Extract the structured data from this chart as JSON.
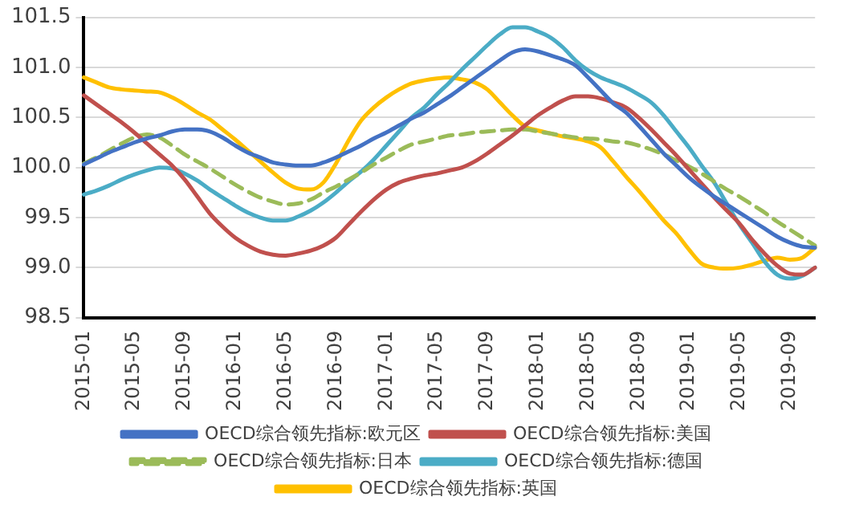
{
  "chart_data": {
    "type": "line",
    "categories": [
      "2015-01",
      null,
      null,
      null,
      "2015-05",
      null,
      null,
      null,
      "2015-09",
      null,
      null,
      null,
      "2016-01",
      null,
      null,
      null,
      "2016-05",
      null,
      null,
      null,
      "2016-09",
      null,
      null,
      null,
      "2017-01",
      null,
      null,
      null,
      "2017-05",
      null,
      null,
      null,
      "2017-09",
      null,
      null,
      null,
      "2018-01",
      null,
      null,
      null,
      "2018-05",
      null,
      null,
      null,
      "2018-09",
      null,
      null,
      null,
      "2019-01",
      null,
      null,
      null,
      "2019-05",
      null,
      null,
      null,
      "2019-09",
      null,
      null
    ],
    "series": [
      {
        "name": "OECD综合领先指标:欧元区",
        "color": "#4472c4",
        "values": [
          100.03,
          100.09,
          100.15,
          100.2,
          100.25,
          100.29,
          100.32,
          100.36,
          100.38,
          100.38,
          100.36,
          100.3,
          100.22,
          100.15,
          100.1,
          100.05,
          100.03,
          100.02,
          100.02,
          100.05,
          100.1,
          100.16,
          100.22,
          100.29,
          100.35,
          100.42,
          100.49,
          100.55,
          100.63,
          100.71,
          100.8,
          100.89,
          100.98,
          101.07,
          101.15,
          101.18,
          101.16,
          101.12,
          101.08,
          101.02,
          100.9,
          100.77,
          100.64,
          100.55,
          100.42,
          100.28,
          100.14,
          100.02,
          99.9,
          99.8,
          99.71,
          99.63,
          99.55,
          99.47,
          99.39,
          99.31,
          99.25,
          99.21,
          99.2
        ]
      },
      {
        "name": "OECD综合领先指标:美国",
        "color": "#c0504d",
        "values": [
          100.72,
          100.63,
          100.54,
          100.45,
          100.35,
          100.24,
          100.13,
          100.02,
          99.88,
          99.71,
          99.54,
          99.41,
          99.3,
          99.22,
          99.16,
          99.13,
          99.12,
          99.14,
          99.17,
          99.22,
          99.3,
          99.43,
          99.56,
          99.68,
          99.78,
          99.85,
          99.89,
          99.92,
          99.94,
          99.97,
          100.0,
          100.06,
          100.14,
          100.23,
          100.32,
          100.42,
          100.52,
          100.6,
          100.67,
          100.71,
          100.71,
          100.69,
          100.65,
          100.6,
          100.5,
          100.38,
          100.25,
          100.12,
          99.98,
          99.84,
          99.7,
          99.57,
          99.44,
          99.28,
          99.14,
          99.02,
          98.94,
          98.93,
          99.0
        ]
      },
      {
        "name": "OECD综合领先指标:日本",
        "color": "#9bbb59",
        "line_style": "dashed",
        "values": [
          100.04,
          100.1,
          100.17,
          100.24,
          100.3,
          100.33,
          100.3,
          100.22,
          100.13,
          100.06,
          99.99,
          99.91,
          99.83,
          99.76,
          99.7,
          99.66,
          99.63,
          99.64,
          99.68,
          99.75,
          99.81,
          99.88,
          99.95,
          100.03,
          100.1,
          100.17,
          100.23,
          100.26,
          100.29,
          100.32,
          100.33,
          100.35,
          100.36,
          100.37,
          100.38,
          100.38,
          100.36,
          100.34,
          100.32,
          100.3,
          100.29,
          100.28,
          100.26,
          100.25,
          100.22,
          100.18,
          100.13,
          100.07,
          100.01,
          99.94,
          99.86,
          99.78,
          99.71,
          99.63,
          99.55,
          99.46,
          99.38,
          99.3,
          99.22
        ]
      },
      {
        "name": "OECD综合领先指标:德国",
        "color": "#4bacc6",
        "values": [
          99.73,
          99.77,
          99.82,
          99.88,
          99.93,
          99.97,
          100.0,
          99.99,
          99.94,
          99.87,
          99.78,
          99.7,
          99.62,
          99.55,
          99.5,
          99.47,
          99.47,
          99.51,
          99.57,
          99.65,
          99.75,
          99.86,
          99.96,
          100.08,
          100.22,
          100.36,
          100.5,
          100.6,
          100.73,
          100.85,
          100.98,
          101.1,
          101.22,
          101.33,
          101.4,
          101.4,
          101.36,
          101.3,
          101.2,
          101.07,
          100.97,
          100.9,
          100.85,
          100.8,
          100.73,
          100.65,
          100.52,
          100.36,
          100.2,
          100.02,
          99.85,
          99.64,
          99.43,
          99.25,
          99.06,
          98.93,
          98.89,
          98.92,
          99.0
        ]
      },
      {
        "name": "OECD综合领先指标:英国",
        "color": "#ffc000",
        "values": [
          100.9,
          100.85,
          100.8,
          100.78,
          100.77,
          100.76,
          100.75,
          100.7,
          100.63,
          100.55,
          100.48,
          100.38,
          100.28,
          100.17,
          100.06,
          99.95,
          99.85,
          99.79,
          99.78,
          99.85,
          100.04,
          100.27,
          100.47,
          100.6,
          100.7,
          100.78,
          100.84,
          100.87,
          100.89,
          100.9,
          100.88,
          100.85,
          100.78,
          100.65,
          100.52,
          100.41,
          100.37,
          100.34,
          100.31,
          100.29,
          100.26,
          100.2,
          100.06,
          99.91,
          99.77,
          99.62,
          99.47,
          99.34,
          99.18,
          99.04,
          99.0,
          98.99,
          99.0,
          99.03,
          99.07,
          99.1,
          99.08,
          99.1,
          99.2
        ]
      }
    ],
    "ylim": [
      98.5,
      101.5
    ],
    "yticks": [
      {
        "value": 98.5,
        "label": "98.5"
      },
      {
        "value": 99,
        "label": "99.0"
      },
      {
        "value": 99.5,
        "label": "99.5"
      },
      {
        "value": 100,
        "label": "100.0"
      },
      {
        "value": 100.5,
        "label": "100.5"
      },
      {
        "value": 101,
        "label": "101.0"
      },
      {
        "value": 101.5,
        "label": "101.5"
      }
    ],
    "grid": "y",
    "legend": "bottom",
    "marker": "none",
    "line_style": "solid"
  }
}
